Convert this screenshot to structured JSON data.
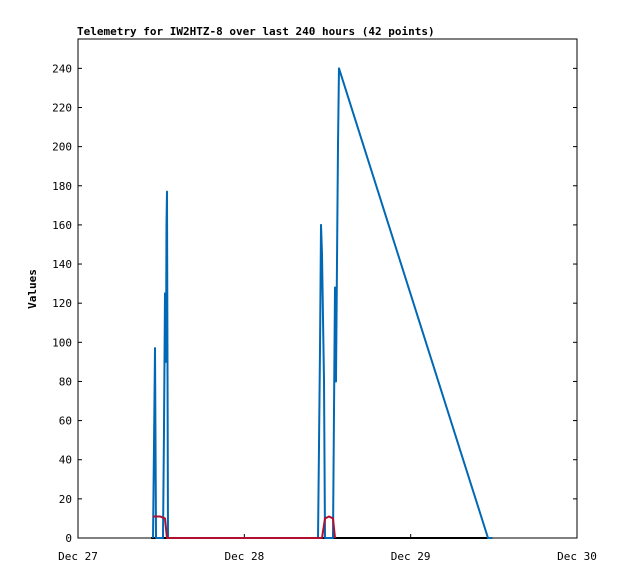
{
  "chart_data": {
    "type": "line",
    "title": "Telemetry for IW2HTZ-8 over last 240 hours (42 points)",
    "y_label": "Values",
    "xlim": [
      0,
      3
    ],
    "xticks": [
      {
        "value": 0,
        "label": "Dec 27"
      },
      {
        "value": 1,
        "label": "Dec 28"
      },
      {
        "value": 2,
        "label": "Dec 29"
      },
      {
        "value": 3,
        "label": "Dec 30"
      }
    ],
    "ylim": [
      0,
      255
    ],
    "yticks": [
      0,
      20,
      40,
      60,
      80,
      100,
      120,
      140,
      160,
      180,
      200,
      220,
      240
    ],
    "series": [
      {
        "color": "#000000",
        "x": [
          0.44,
          2.49
        ],
        "values": [
          0,
          0
        ]
      },
      {
        "color": "#0068b4",
        "x": [
          0.451,
          0.457,
          0.463,
          0.469,
          0.511,
          0.517,
          0.523,
          0.529,
          0.532,
          0.535,
          0.541,
          1.443,
          1.449,
          1.455,
          1.461,
          1.467,
          1.473,
          1.479,
          1.485,
          1.533,
          1.539,
          1.545,
          1.551,
          1.563,
          1.569,
          2.465,
          2.489
        ],
        "values": [
          0,
          48,
          97,
          0,
          0,
          55,
          125,
          90,
          160,
          177,
          0,
          0,
          48,
          97,
          160,
          145,
          112,
          80,
          0,
          0,
          64,
          128,
          80,
          200,
          240,
          0,
          0
        ]
      },
      {
        "color": "#b01030",
        "x": [
          0.451,
          0.493,
          0.523,
          0.535,
          1.467,
          1.485,
          1.509,
          1.533,
          1.545
        ],
        "values": [
          11,
          11,
          10,
          0,
          0,
          10,
          11,
          10,
          0
        ]
      }
    ]
  }
}
